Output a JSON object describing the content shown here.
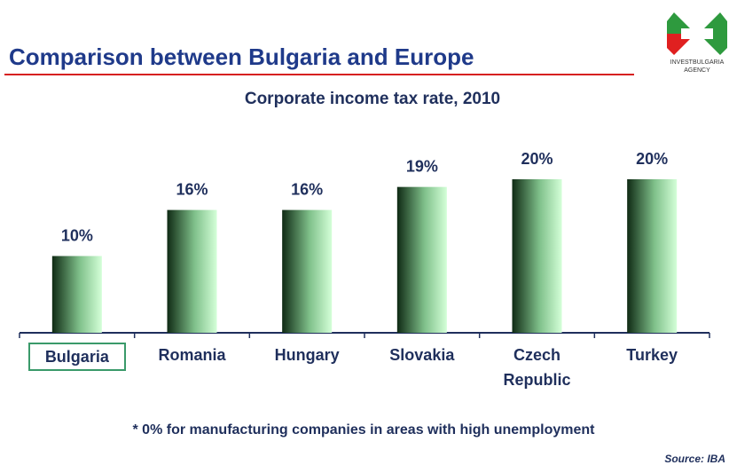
{
  "header": {
    "title": "Comparison between Bulgaria and Europe",
    "logo_line1": "INVESTBULGARIA",
    "logo_line2": "AGENCY"
  },
  "chart_data": {
    "type": "bar",
    "title": "Corporate income tax rate, 2010",
    "categories": [
      "Bulgaria",
      "Romania",
      "Hungary",
      "Slovakia",
      "Czech Republic",
      "Turkey"
    ],
    "values": [
      10,
      16,
      16,
      19,
      20,
      20
    ],
    "value_labels": [
      "10%",
      "16%",
      "16%",
      "19%",
      "20%",
      "20%"
    ],
    "highlight": "Bulgaria"
  },
  "footnote": "* 0% for manufacturing companies in areas with high unemployment",
  "source": "Source: IBA"
}
